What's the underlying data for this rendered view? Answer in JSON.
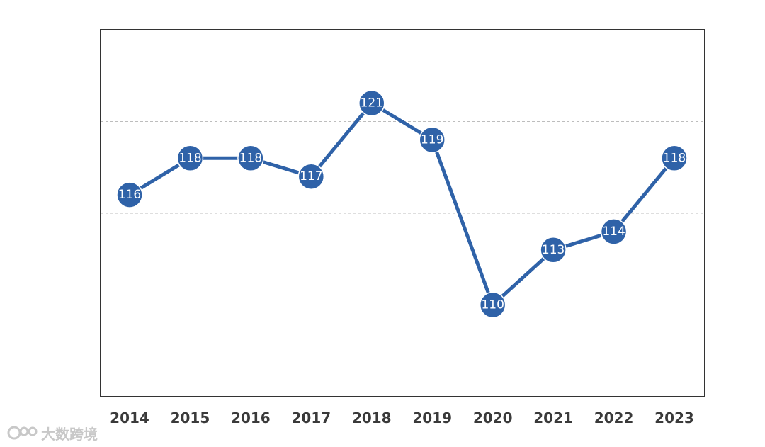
{
  "chart_data": {
    "type": "line",
    "categories": [
      "2014",
      "2015",
      "2016",
      "2017",
      "2018",
      "2019",
      "2020",
      "2021",
      "2022",
      "2023"
    ],
    "series": [
      {
        "values": [
          116,
          118,
          118,
          117,
          121,
          119,
          110,
          113,
          114,
          118
        ]
      }
    ],
    "ylim": [
      105,
      125
    ],
    "grid": "horizontal-dashed",
    "line_color": "#2f62a8",
    "frame_color": "#333333",
    "grid_color": "#bdbdbd"
  },
  "watermark": {
    "text": "大数跨境"
  }
}
